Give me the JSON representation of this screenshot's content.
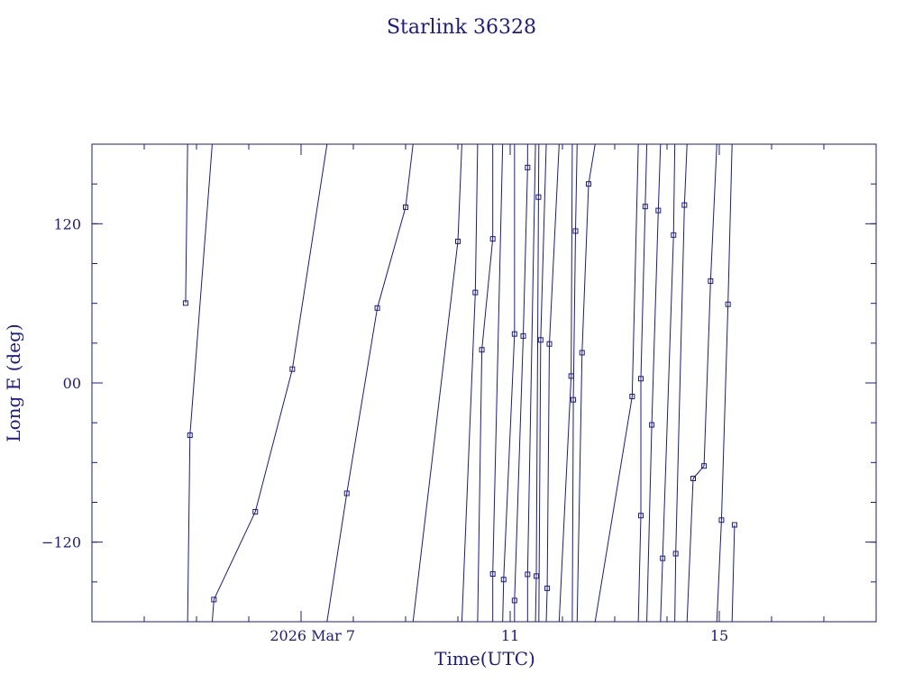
{
  "colors": {
    "ink": "#1a1a8c",
    "background": "#ffffff"
  },
  "chart_data": {
    "type": "line",
    "title": "Starlink 36328",
    "xlabel": "Time(UTC)",
    "ylabel": "Long E (deg)",
    "xlim": [
      "2026-03-03",
      "2026-03-18"
    ],
    "ylim": [
      -180,
      180
    ],
    "wrap": "longitude",
    "markers": "square",
    "grid": false,
    "x_ticks": [
      {
        "value": "2026-03-07",
        "label": "2026 Mar  7"
      },
      {
        "value": "2026-03-11",
        "label": "11"
      },
      {
        "value": "2026-03-15",
        "label": "15"
      }
    ],
    "y_ticks": [
      {
        "value": 120,
        "label": "120"
      },
      {
        "value": 0,
        "label": "00"
      },
      {
        "value": -120,
        "label": "−120"
      }
    ],
    "series": [
      {
        "points": [
          [
            "2026-03-04T19:00",
            60.2
          ],
          [
            "2026-03-04T21:00",
            -39.4
          ],
          [
            "2026-03-05T08:00",
            -163.3
          ],
          [
            "2026-03-06T03:00",
            -97.1
          ],
          [
            "2026-03-06T20:00",
            10.4
          ],
          [
            "2026-03-07T21:00",
            -83.2
          ],
          [
            "2026-03-08T11:00",
            56.5
          ],
          [
            "2026-03-09T00:00",
            132.5
          ],
          [
            "2026-03-10T00:00",
            106.7
          ],
          [
            "2026-03-10T08:00",
            68.2
          ],
          [
            "2026-03-10T11:00",
            25.0
          ],
          [
            "2026-03-10T16:00",
            108.6
          ],
          [
            "2026-03-10T16:00",
            -144.0
          ],
          [
            "2026-03-10T21:00",
            -148.2
          ],
          [
            "2026-03-11T02:00",
            36.9
          ],
          [
            "2026-03-11T02:00",
            -164.0
          ],
          [
            "2026-03-11T06:00",
            35.4
          ],
          [
            "2026-03-11T08:00",
            162.4
          ],
          [
            "2026-03-11T08:00",
            -144.3
          ],
          [
            "2026-03-11T12:00",
            -145.6
          ],
          [
            "2026-03-11T13:00",
            140.1
          ],
          [
            "2026-03-11T14:00",
            32.4
          ],
          [
            "2026-03-11T17:00",
            -154.8
          ],
          [
            "2026-03-11T18:00",
            29.4
          ],
          [
            "2026-03-12T04:00",
            5.2
          ],
          [
            "2026-03-12T05:00",
            -12.7
          ],
          [
            "2026-03-12T06:00",
            114.5
          ],
          [
            "2026-03-12T09:00",
            22.8
          ],
          [
            "2026-03-12T12:00",
            150.0
          ],
          [
            "2026-03-13T08:00",
            -10.2
          ],
          [
            "2026-03-13T12:00",
            -100.0
          ],
          [
            "2026-03-13T12:00",
            3.2
          ],
          [
            "2026-03-13T14:00",
            133.0
          ],
          [
            "2026-03-13T17:00",
            -31.6
          ],
          [
            "2026-03-13T20:00",
            130.0
          ],
          [
            "2026-03-13T22:00",
            -132.2
          ],
          [
            "2026-03-14T03:00",
            111.5
          ],
          [
            "2026-03-14T04:00",
            -128.7
          ],
          [
            "2026-03-14T08:00",
            134.1
          ],
          [
            "2026-03-14T12:00",
            -72.0
          ],
          [
            "2026-03-14T17:00",
            -62.6
          ],
          [
            "2026-03-14T20:00",
            76.8
          ],
          [
            "2026-03-15T01:00",
            -103.4
          ],
          [
            "2026-03-15T04:00",
            59.3
          ],
          [
            "2026-03-15T07:00",
            -107.0
          ]
        ]
      }
    ]
  }
}
